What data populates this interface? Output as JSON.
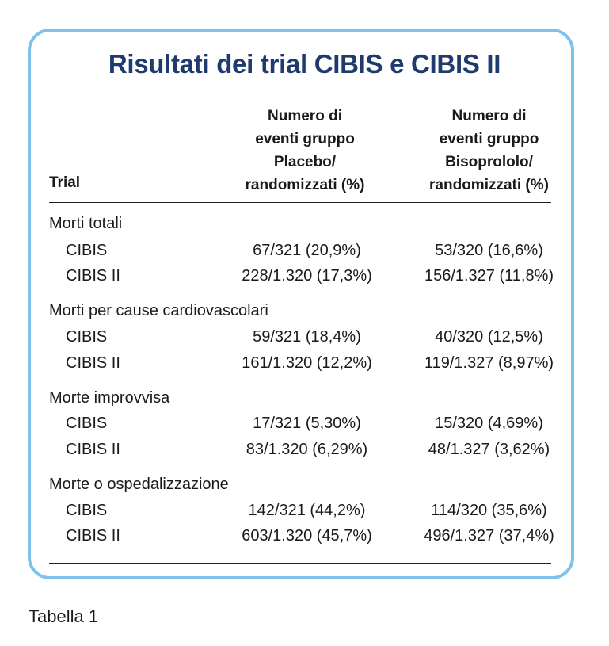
{
  "title": "Risultati dei trial CIBIS e CIBIS II",
  "headers": {
    "trial": "Trial",
    "placebo": "Numero di\neventi gruppo\nPlacebo/\nrandomizzati (%)",
    "bisoprolol": "Numero di\neventi gruppo\nBisoprololo/\nrandomizzati (%)"
  },
  "sections": [
    {
      "label": "Morti totali",
      "rows": [
        {
          "trial": "CIBIS",
          "placebo": "67/321 (20,9%)",
          "bisoprolol": "53/320 (16,6%)"
        },
        {
          "trial": "CIBIS II",
          "placebo": "228/1.320 (17,3%)",
          "bisoprolol": "156/1.327 (11,8%)"
        }
      ]
    },
    {
      "label": "Morti per cause cardiovascolari",
      "rows": [
        {
          "trial": "CIBIS",
          "placebo": "59/321 (18,4%)",
          "bisoprolol": "40/320 (12,5%)"
        },
        {
          "trial": "CIBIS II",
          "placebo": "161/1.320 (12,2%)",
          "bisoprolol": "119/1.327 (8,97%)"
        }
      ]
    },
    {
      "label": "Morte improvvisa",
      "rows": [
        {
          "trial": "CIBIS",
          "placebo": "17/321 (5,30%)",
          "bisoprolol": "15/320 (4,69%)"
        },
        {
          "trial": "CIBIS II",
          "placebo": "83/1.320 (6,29%)",
          "bisoprolol": "48/1.327 (3,62%)"
        }
      ]
    },
    {
      "label": "Morte o ospedalizzazione",
      "rows": [
        {
          "trial": "CIBIS",
          "placebo": "142/321 (44,2%)",
          "bisoprolol": "114/320 (35,6%)"
        },
        {
          "trial": "CIBIS II",
          "placebo": "603/1.320 (45,7%)",
          "bisoprolol": "496/1.327 (37,4%)"
        }
      ]
    }
  ],
  "caption": "Tabella 1",
  "colors": {
    "title": "#1f3a6e",
    "border": "#7dc2ea",
    "text": "#1a1a1a"
  }
}
